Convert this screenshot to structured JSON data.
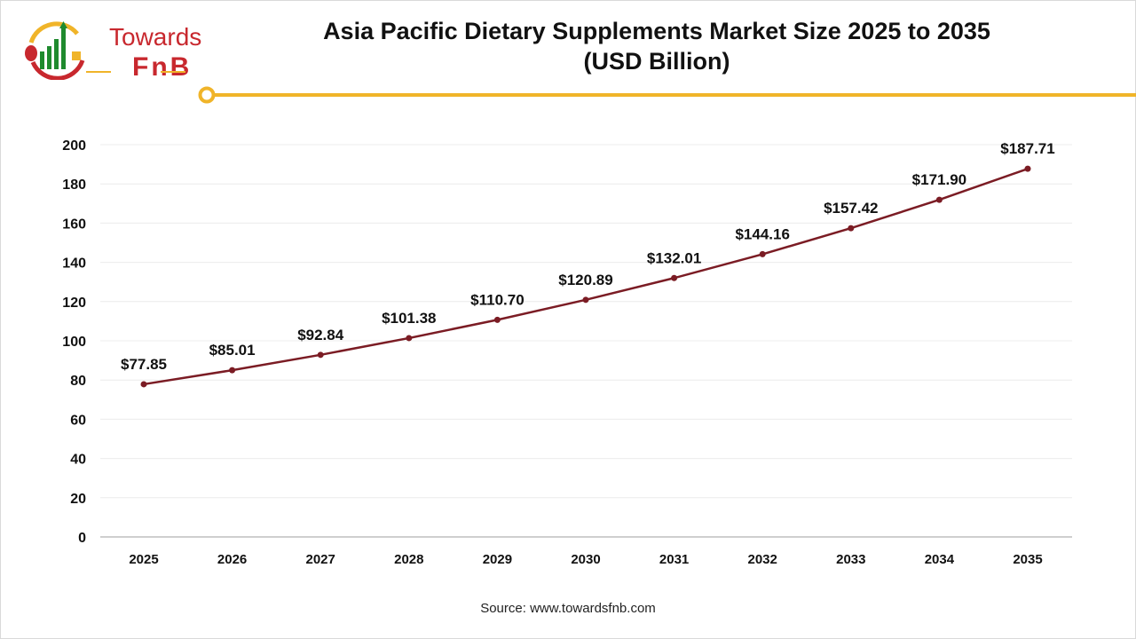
{
  "logo": {
    "line1": "Towards",
    "line2": "FnB"
  },
  "title": "Asia Pacific Dietary Supplements Market Size 2025 to 2035",
  "subtitle": "(USD Billion)",
  "source": "Source: www.towardsfnb.com",
  "colors": {
    "line": "#7b1c24",
    "accent": "#f0b429",
    "grid": "#ececec"
  },
  "chart_data": {
    "type": "line",
    "title": "Asia Pacific Dietary Supplements Market Size 2025 to 2035 (USD Billion)",
    "categories": [
      "2025",
      "2026",
      "2027",
      "2028",
      "2029",
      "2030",
      "2031",
      "2032",
      "2033",
      "2034",
      "2035"
    ],
    "values": [
      77.85,
      85.01,
      92.84,
      101.38,
      110.7,
      120.89,
      132.01,
      144.16,
      157.42,
      171.9,
      187.71
    ],
    "data_labels": [
      "$77.85",
      "$85.01",
      "$92.84",
      "$101.38",
      "$110.70",
      "$120.89",
      "$132.01",
      "$144.16",
      "$157.42",
      "$171.90",
      "$187.71"
    ],
    "ylim": [
      0,
      200
    ],
    "yticks": [
      0,
      20,
      40,
      60,
      80,
      100,
      120,
      140,
      160,
      180,
      200
    ],
    "grid": true,
    "legend": "none"
  }
}
